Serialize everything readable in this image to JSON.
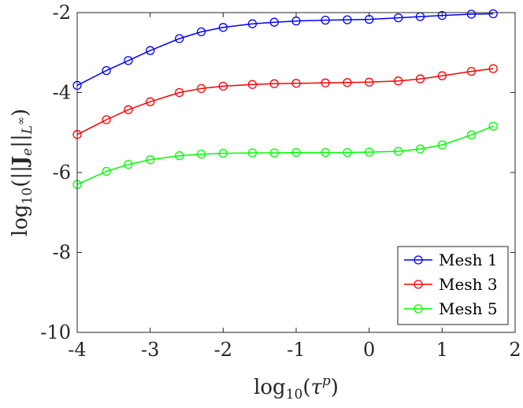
{
  "chart_data": {
    "type": "line",
    "title": "",
    "xlabel": "log₁₀(τᵖ)",
    "ylabel": "log₁₀(||Jₑ||L∞)",
    "xlim": [
      -4,
      2
    ],
    "ylim": [
      -10,
      -2
    ],
    "xticks": [
      -4,
      -3,
      -2,
      -1,
      0,
      1,
      2
    ],
    "yticks": [
      -10,
      -8,
      -6,
      -4,
      -2
    ],
    "xtick_labels": [
      "-4",
      "-3",
      "-2",
      "-1",
      "0",
      "1",
      "2"
    ],
    "ytick_labels": [
      "-10",
      "-8",
      "-6",
      "-4",
      "-2"
    ],
    "grid": false,
    "legend_position": "bottom-right",
    "x": [
      -4.0,
      -3.6,
      -3.3,
      -3.0,
      -2.6,
      -2.3,
      -2.0,
      -1.6,
      -1.3,
      -1.0,
      -0.6,
      -0.3,
      0.0,
      0.4,
      0.7,
      1.0,
      1.4,
      1.7
    ],
    "series": [
      {
        "name": "Mesh 1",
        "color": "#0000ff",
        "values": [
          -3.82,
          -3.45,
          -3.2,
          -2.95,
          -2.65,
          -2.48,
          -2.37,
          -2.28,
          -2.24,
          -2.21,
          -2.19,
          -2.18,
          -2.17,
          -2.13,
          -2.1,
          -2.07,
          -2.04,
          -2.03
        ]
      },
      {
        "name": "Mesh 3",
        "color": "#ff0000",
        "values": [
          -5.05,
          -4.68,
          -4.43,
          -4.23,
          -4.0,
          -3.9,
          -3.84,
          -3.8,
          -3.78,
          -3.77,
          -3.76,
          -3.75,
          -3.74,
          -3.71,
          -3.66,
          -3.58,
          -3.47,
          -3.4
        ]
      },
      {
        "name": "Mesh 5",
        "color": "#00ff00",
        "values": [
          -6.3,
          -5.97,
          -5.8,
          -5.68,
          -5.58,
          -5.54,
          -5.52,
          -5.51,
          -5.51,
          -5.5,
          -5.5,
          -5.5,
          -5.49,
          -5.47,
          -5.41,
          -5.31,
          -5.06,
          -4.84
        ]
      }
    ]
  }
}
